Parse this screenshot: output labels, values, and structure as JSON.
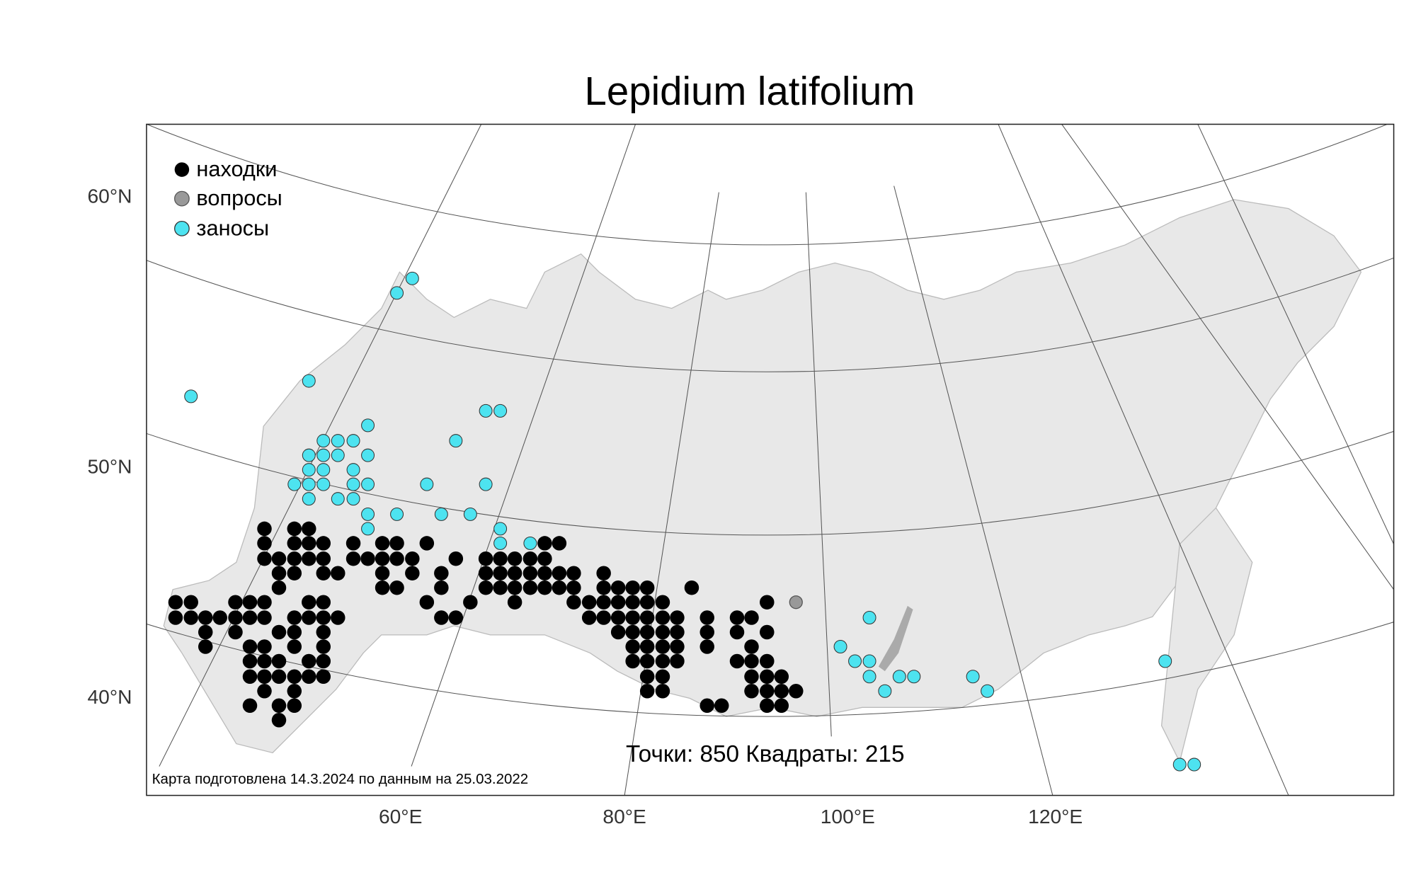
{
  "title": "Lepidium latifolium",
  "legend": [
    "находки",
    "вопросы",
    "заносы"
  ],
  "lat_labels": [
    "60°N",
    "50°N",
    "40°N"
  ],
  "lon_labels": [
    "60°E",
    "80°E",
    "100°E",
    "120°E"
  ],
  "stats": "Точки: 850 Квадраты: 215",
  "footer": "Карта подготовлена 14.3.2024 по данным на 25.03.2022"
}
